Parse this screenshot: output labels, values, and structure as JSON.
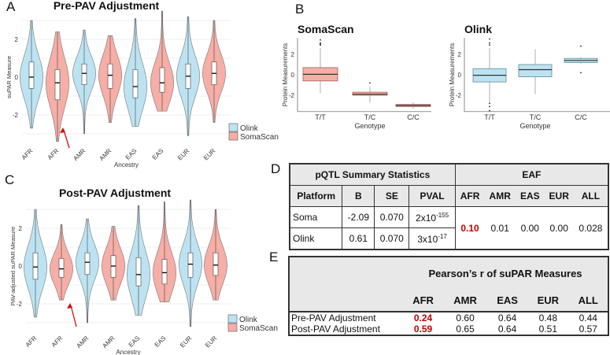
{
  "panel_labels": {
    "a": "A",
    "b": "B",
    "c": "C",
    "d": "D",
    "e": "E"
  },
  "colors": {
    "olink": "#bde3f2",
    "soma": "#f6aea6",
    "arrow": "#d01010",
    "highlight": "#c00000"
  },
  "chart_data": [
    {
      "id": "A",
      "type": "violin",
      "title": "Pre-PAV Adjustment",
      "xlabel": "Ancestry",
      "ylabel": "suPAR Measure",
      "yticks": [
        -2,
        0,
        2
      ],
      "ylim": [
        -3.6,
        3.6
      ],
      "legend": {
        "position": "right",
        "entries": [
          "Olink",
          "SomaScan"
        ]
      },
      "categories": [
        "AFR",
        "AFR",
        "AMR",
        "AMR",
        "EAS",
        "EAS",
        "EUR",
        "EUR"
      ],
      "platform": [
        "Olink",
        "SomaScan",
        "Olink",
        "SomaScan",
        "Olink",
        "SomaScan",
        "Olink",
        "SomaScan"
      ],
      "min": [
        -2.7,
        -3.4,
        -3.0,
        -2.4,
        -2.6,
        -1.8,
        -3.1,
        -2.4
      ],
      "q1": [
        -0.6,
        -1.2,
        -0.4,
        -0.6,
        -1.1,
        -0.8,
        -0.6,
        -0.4
      ],
      "median": [
        0,
        -0.3,
        0.2,
        0.1,
        -0.5,
        -0.3,
        0.05,
        0.2
      ],
      "q3": [
        0.8,
        0.4,
        0.7,
        0.7,
        0.4,
        0.5,
        0.7,
        0.8
      ],
      "max": [
        3.0,
        2.4,
        2.5,
        2.2,
        3.1,
        3.5,
        3.2,
        3.0
      ],
      "annotation": "arrow pointing at SomaScan AFR"
    },
    {
      "id": "B1",
      "type": "box",
      "title": "SomaScan",
      "xlabel": "Genotype",
      "ylabel": "Protein Measurements",
      "yticks": [
        -2,
        0,
        2
      ],
      "ylim": [
        -3.6,
        3.6
      ],
      "categories": [
        "T/T",
        "T/C",
        "C/C"
      ],
      "q1": [
        -0.6,
        -2.0,
        -3.1
      ],
      "median": [
        0.05,
        -1.9,
        -3.0
      ],
      "q3": [
        0.7,
        -1.7,
        -2.9
      ],
      "whisker_low": [
        -1.8,
        -2.7,
        -3.3
      ],
      "whisker_high": [
        2.6,
        -1.2,
        -2.7
      ],
      "outliers": [
        [
          2.9,
          3.0,
          3.1,
          3.4
        ],
        [
          -0.8
        ],
        []
      ]
    },
    {
      "id": "B2",
      "type": "box",
      "title": "Olink",
      "xlabel": "Genotype",
      "ylabel": "Protein Measurements",
      "yticks": [
        -2,
        0,
        2
      ],
      "ylim": [
        -3.6,
        3.6
      ],
      "categories": [
        "T/T",
        "T/C",
        "C/C"
      ],
      "q1": [
        -0.7,
        -0.2,
        1.2
      ],
      "median": [
        -0.05,
        0.5,
        1.4
      ],
      "q3": [
        0.6,
        1.0,
        1.6
      ],
      "whisker_low": [
        -2.7,
        -1.9,
        1.1
      ],
      "whisker_high": [
        2.6,
        2.5,
        1.7
      ],
      "outliers": [
        [
          2.9,
          3.1,
          3.5,
          -2.8,
          -3.1,
          -3.5
        ],
        [],
        [
          2.8,
          0.2
        ]
      ]
    },
    {
      "id": "C",
      "type": "violin",
      "title": "Post-PAV Adjustment",
      "xlabel": "Ancestry",
      "ylabel": "PAV-adjusted suPAR Measure",
      "yticks": [
        -2,
        0,
        2
      ],
      "ylim": [
        -3.6,
        3.6
      ],
      "legend": {
        "position": "right",
        "entries": [
          "Olink",
          "SomaScan"
        ]
      },
      "categories": [
        "AFR",
        "AFR",
        "AMR",
        "AMR",
        "EAS",
        "EAS",
        "EUR",
        "EUR"
      ],
      "platform": [
        "Olink",
        "SomaScan",
        "Olink",
        "SomaScan",
        "Olink",
        "SomaScan",
        "Olink",
        "SomaScan"
      ],
      "min": [
        -2.7,
        -1.8,
        -3.0,
        -1.8,
        -2.6,
        -1.9,
        -3.2,
        -1.8
      ],
      "q1": [
        -0.7,
        -0.6,
        -0.45,
        -0.6,
        -1.05,
        -0.95,
        -0.6,
        -0.5
      ],
      "median": [
        -0.05,
        -0.15,
        0.2,
        0,
        -0.45,
        -0.35,
        0.1,
        0.05
      ],
      "q3": [
        0.7,
        0.4,
        0.7,
        0.55,
        0.45,
        0.35,
        0.7,
        0.7
      ],
      "max": [
        3.0,
        2.2,
        2.5,
        2.1,
        3.2,
        3.4,
        3.5,
        3.0
      ],
      "annotation": "arrow pointing at SomaScan AFR"
    }
  ],
  "table_d": {
    "group_left": "pQTL Summary Statistics",
    "group_right": "EAF",
    "headers": [
      "Platform",
      "B",
      "SE",
      "PVAL",
      "AFR",
      "AMR",
      "EAS",
      "EUR",
      "ALL"
    ],
    "rows": [
      {
        "platform": "Soma",
        "b": "-2.09",
        "se": "0.070",
        "pval_base": "2x10",
        "pval_exp": "-155"
      },
      {
        "platform": "Olink",
        "b": "0.61",
        "se": "0.070",
        "pval_base": "3x10",
        "pval_exp": "-17"
      }
    ],
    "eaf": [
      "0.10",
      "0.01",
      "0.00",
      "0.00",
      "0.028"
    ]
  },
  "table_e": {
    "title": "Pearson’s r of suPAR Measures",
    "headers": [
      "AFR",
      "AMR",
      "EAS",
      "EUR",
      "ALL"
    ],
    "rows": [
      {
        "label": "Pre-PAV Adjustment",
        "values": [
          "0.24",
          "0.60",
          "0.64",
          "0.48",
          "0.44"
        ]
      },
      {
        "label": "Post-PAV Adjustment",
        "values": [
          "0.59",
          "0.65",
          "0.64",
          "0.51",
          "0.57"
        ]
      }
    ]
  }
}
